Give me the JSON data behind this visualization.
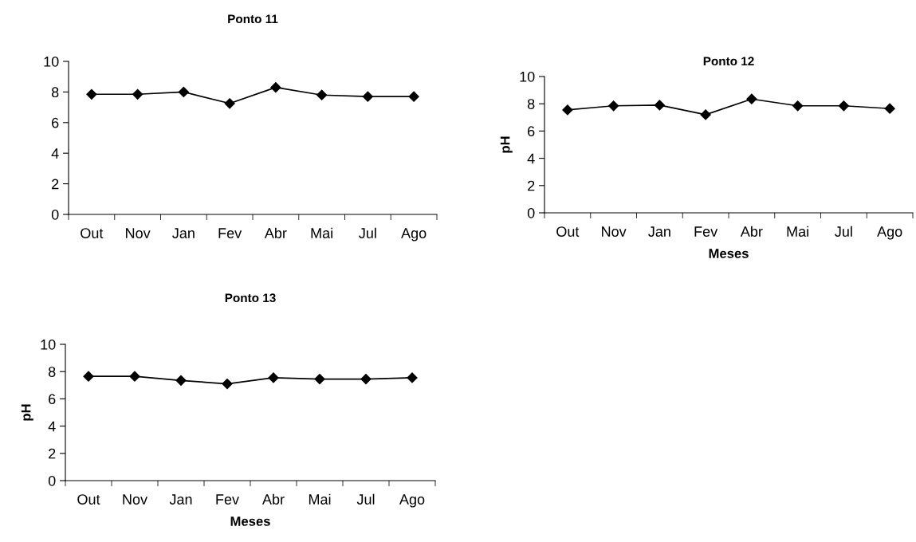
{
  "chart_data": [
    {
      "type": "line",
      "title": "Ponto 11",
      "categories": [
        "Out",
        "Nov",
        "Jan",
        "Fev",
        "Abr",
        "Mai",
        "Jul",
        "Ago"
      ],
      "series": [
        {
          "color": "#000000",
          "values": [
            7.85,
            7.85,
            8.0,
            7.25,
            8.3,
            7.8,
            7.7,
            7.7
          ]
        }
      ],
      "ylim": [
        0,
        10
      ],
      "yticks": [
        0,
        2,
        4,
        6,
        8,
        10
      ],
      "marker": "diamond",
      "line_style": "solid",
      "grid": false,
      "legend": false
    },
    {
      "type": "line",
      "title": "Ponto 12",
      "xlabel": "Meses",
      "ylabel": "pH",
      "categories": [
        "Out",
        "Nov",
        "Jan",
        "Fev",
        "Abr",
        "Mai",
        "Jul",
        "Ago"
      ],
      "series": [
        {
          "color": "#000000",
          "values": [
            7.55,
            7.85,
            7.9,
            7.2,
            8.35,
            7.85,
            7.85,
            7.65
          ]
        }
      ],
      "ylim": [
        0,
        10
      ],
      "yticks": [
        0,
        2,
        4,
        6,
        8,
        10
      ],
      "marker": "diamond",
      "line_style": "solid",
      "grid": false,
      "legend": false
    },
    {
      "type": "line",
      "title": "Ponto 13",
      "xlabel": "Meses",
      "ylabel": "pH",
      "categories": [
        "Out",
        "Nov",
        "Jan",
        "Fev",
        "Abr",
        "Mai",
        "Jul",
        "Ago"
      ],
      "series": [
        {
          "color": "#000000",
          "values": [
            7.65,
            7.65,
            7.35,
            7.1,
            7.55,
            7.45,
            7.45,
            7.55
          ]
        }
      ],
      "ylim": [
        0,
        10
      ],
      "yticks": [
        0,
        2,
        4,
        6,
        8,
        10
      ],
      "marker": "diamond",
      "line_style": "solid",
      "grid": false,
      "legend": false
    }
  ]
}
